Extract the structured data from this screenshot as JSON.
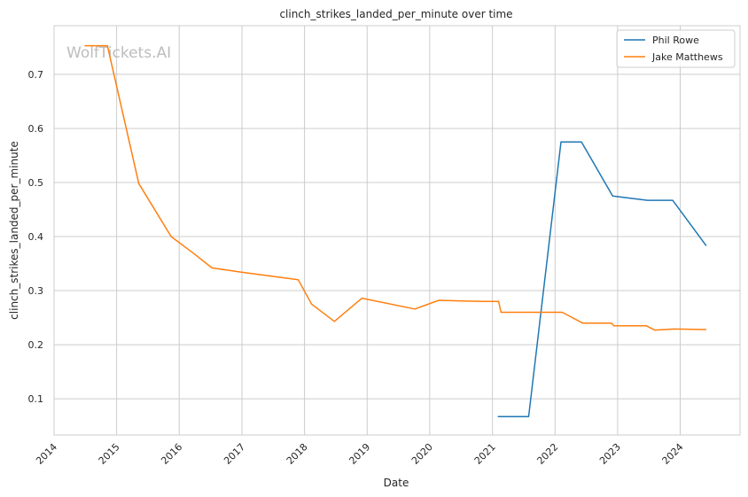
{
  "chart_data": {
    "type": "line",
    "title": "clinch_strikes_landed_per_minute over time",
    "xlabel": "Date",
    "ylabel": "clinch_strikes_landed_per_minute",
    "watermark": "WolfTickets.AI",
    "xlim": [
      "2014-01-01",
      "2024-12-15"
    ],
    "ylim": [
      0.033,
      0.79
    ],
    "x_ticks": [
      "2014",
      "2015",
      "2016",
      "2017",
      "2018",
      "2019",
      "2020",
      "2021",
      "2022",
      "2023",
      "2024"
    ],
    "y_ticks": [
      0.1,
      0.2,
      0.3,
      0.4,
      0.5,
      0.6,
      0.7
    ],
    "grid": true,
    "legend_position": "top-right",
    "series": [
      {
        "name": "Phil Rowe",
        "color": "#1f77b4",
        "points": [
          {
            "x": "2021-02-01",
            "y": 0.067
          },
          {
            "x": "2021-07-31",
            "y": 0.067
          },
          {
            "x": "2022-02-05",
            "y": 0.575
          },
          {
            "x": "2022-06-04",
            "y": 0.575
          },
          {
            "x": "2022-12-03",
            "y": 0.475
          },
          {
            "x": "2023-06-24",
            "y": 0.467
          },
          {
            "x": "2023-11-18",
            "y": 0.467
          },
          {
            "x": "2024-06-01",
            "y": 0.383
          }
        ]
      },
      {
        "name": "Jake Matthews",
        "color": "#ff7f0e",
        "points": [
          {
            "x": "2014-06-28",
            "y": 0.753
          },
          {
            "x": "2014-11-08",
            "y": 0.753
          },
          {
            "x": "2015-05-10",
            "y": 0.498
          },
          {
            "x": "2015-11-15",
            "y": 0.4
          },
          {
            "x": "2016-03-20",
            "y": 0.37
          },
          {
            "x": "2016-07-10",
            "y": 0.342
          },
          {
            "x": "2016-12-10",
            "y": 0.335
          },
          {
            "x": "2017-11-25",
            "y": 0.32
          },
          {
            "x": "2018-02-11",
            "y": 0.275
          },
          {
            "x": "2018-06-24",
            "y": 0.243
          },
          {
            "x": "2018-12-02",
            "y": 0.286
          },
          {
            "x": "2019-10-06",
            "y": 0.266
          },
          {
            "x": "2020-02-23",
            "y": 0.282
          },
          {
            "x": "2020-10-31",
            "y": 0.28
          },
          {
            "x": "2021-02-06",
            "y": 0.28
          },
          {
            "x": "2021-02-20",
            "y": 0.26
          },
          {
            "x": "2022-02-12",
            "y": 0.26
          },
          {
            "x": "2022-06-11",
            "y": 0.24
          },
          {
            "x": "2022-11-26",
            "y": 0.24
          },
          {
            "x": "2022-12-10",
            "y": 0.235
          },
          {
            "x": "2023-06-17",
            "y": 0.235
          },
          {
            "x": "2023-08-05",
            "y": 0.227
          },
          {
            "x": "2023-11-25",
            "y": 0.229
          },
          {
            "x": "2024-06-01",
            "y": 0.228
          }
        ]
      }
    ]
  }
}
